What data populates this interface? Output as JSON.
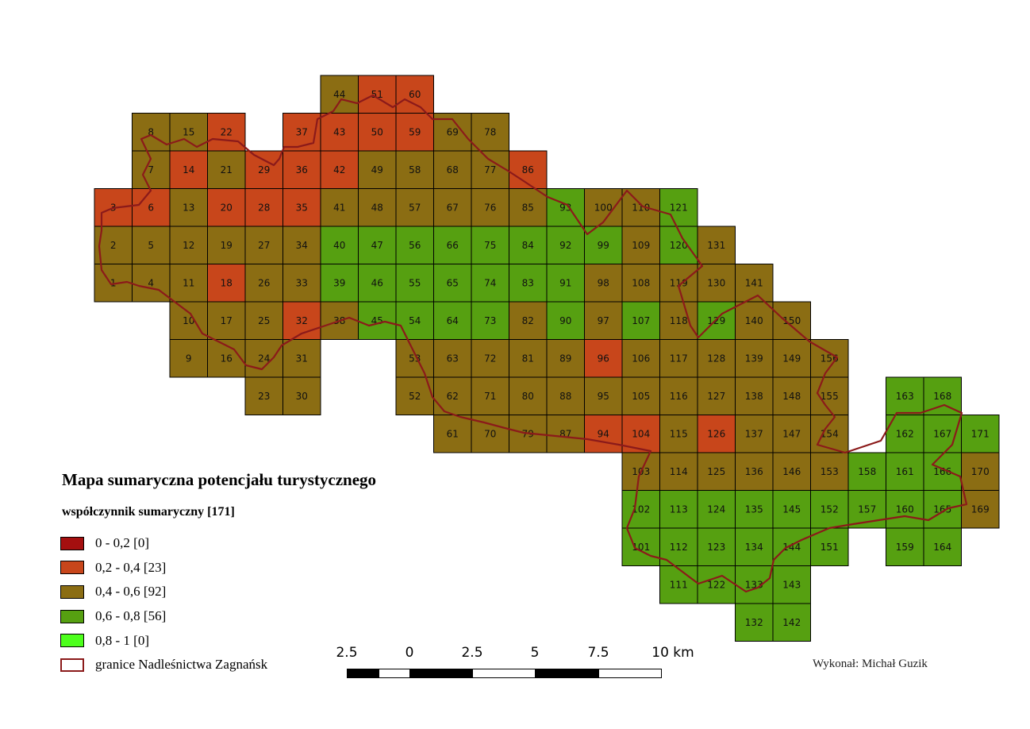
{
  "legend": {
    "title": "Mapa sumaryczna potencjału turystycznego",
    "subtitle": "współczynnik sumaryczny [171]",
    "classes": [
      {
        "label": "0 - 0,2 [0]",
        "color": "#a50f0f"
      },
      {
        "label": "0,2 - 0,4 [23]",
        "color": "#c8461b"
      },
      {
        "label": "0,4 - 0,6 [92]",
        "color": "#8b6d13"
      },
      {
        "label": "0,6 - 0,8 [56]",
        "color": "#56a011"
      },
      {
        "label": "0,8 - 1 [0]",
        "color": "#4dff1c"
      }
    ],
    "boundary": {
      "label": "granice Nadleśnictwa Zagnańsk",
      "color": "#8b1a1a"
    }
  },
  "scalebar": {
    "labels": [
      "2.5",
      "0",
      "2.5",
      "5",
      "7.5",
      "10 km"
    ]
  },
  "credit": "Wykonał: Michał Guzik",
  "map_data": {
    "classes_key": [
      "c0",
      "c1",
      "c2",
      "c3",
      "c4"
    ],
    "cells": [
      {
        "id": "1",
        "cls": 2
      },
      {
        "id": "2",
        "cls": 2
      },
      {
        "id": "3",
        "cls": 1
      },
      {
        "id": "4",
        "cls": 2
      },
      {
        "id": "5",
        "cls": 2
      },
      {
        "id": "6",
        "cls": 1
      },
      {
        "id": "7",
        "cls": 2
      },
      {
        "id": "8",
        "cls": 2
      },
      {
        "id": "9",
        "cls": 2
      },
      {
        "id": "10",
        "cls": 2
      },
      {
        "id": "11",
        "cls": 2
      },
      {
        "id": "12",
        "cls": 2
      },
      {
        "id": "13",
        "cls": 2
      },
      {
        "id": "14",
        "cls": 1
      },
      {
        "id": "15",
        "cls": 2
      },
      {
        "id": "16",
        "cls": 2
      },
      {
        "id": "17",
        "cls": 2
      },
      {
        "id": "18",
        "cls": 1
      },
      {
        "id": "19",
        "cls": 2
      },
      {
        "id": "20",
        "cls": 1
      },
      {
        "id": "21",
        "cls": 2
      },
      {
        "id": "22",
        "cls": 1
      },
      {
        "id": "23",
        "cls": 2
      },
      {
        "id": "24",
        "cls": 2
      },
      {
        "id": "25",
        "cls": 2
      },
      {
        "id": "26",
        "cls": 2
      },
      {
        "id": "27",
        "cls": 2
      },
      {
        "id": "28",
        "cls": 1
      },
      {
        "id": "29",
        "cls": 1
      },
      {
        "id": "30",
        "cls": 2
      },
      {
        "id": "31",
        "cls": 2
      },
      {
        "id": "32",
        "cls": 1
      },
      {
        "id": "33",
        "cls": 2
      },
      {
        "id": "34",
        "cls": 2
      },
      {
        "id": "35",
        "cls": 1
      },
      {
        "id": "36",
        "cls": 1
      },
      {
        "id": "37",
        "cls": 1
      },
      {
        "id": "38",
        "cls": 2
      },
      {
        "id": "39",
        "cls": 3
      },
      {
        "id": "40",
        "cls": 3
      },
      {
        "id": "41",
        "cls": 2
      },
      {
        "id": "42",
        "cls": 1
      },
      {
        "id": "43",
        "cls": 1
      },
      {
        "id": "44",
        "cls": 2
      },
      {
        "id": "45",
        "cls": 3
      },
      {
        "id": "46",
        "cls": 3
      },
      {
        "id": "47",
        "cls": 3
      },
      {
        "id": "48",
        "cls": 2
      },
      {
        "id": "49",
        "cls": 2
      },
      {
        "id": "50",
        "cls": 1
      },
      {
        "id": "51",
        "cls": 1
      },
      {
        "id": "52",
        "cls": 2
      },
      {
        "id": "53",
        "cls": 2
      },
      {
        "id": "54",
        "cls": 3
      },
      {
        "id": "55",
        "cls": 3
      },
      {
        "id": "56",
        "cls": 3
      },
      {
        "id": "57",
        "cls": 2
      },
      {
        "id": "58",
        "cls": 2
      },
      {
        "id": "59",
        "cls": 1
      },
      {
        "id": "60",
        "cls": 1
      },
      {
        "id": "61",
        "cls": 2
      },
      {
        "id": "62",
        "cls": 2
      },
      {
        "id": "63",
        "cls": 2
      },
      {
        "id": "64",
        "cls": 3
      },
      {
        "id": "65",
        "cls": 3
      },
      {
        "id": "66",
        "cls": 3
      },
      {
        "id": "67",
        "cls": 2
      },
      {
        "id": "68",
        "cls": 2
      },
      {
        "id": "69",
        "cls": 2
      },
      {
        "id": "70",
        "cls": 2
      },
      {
        "id": "71",
        "cls": 2
      },
      {
        "id": "72",
        "cls": 2
      },
      {
        "id": "73",
        "cls": 3
      },
      {
        "id": "74",
        "cls": 3
      },
      {
        "id": "75",
        "cls": 3
      },
      {
        "id": "76",
        "cls": 2
      },
      {
        "id": "77",
        "cls": 2
      },
      {
        "id": "78",
        "cls": 2
      },
      {
        "id": "79",
        "cls": 2
      },
      {
        "id": "80",
        "cls": 2
      },
      {
        "id": "81",
        "cls": 2
      },
      {
        "id": "82",
        "cls": 2
      },
      {
        "id": "83",
        "cls": 3
      },
      {
        "id": "84",
        "cls": 3
      },
      {
        "id": "85",
        "cls": 2
      },
      {
        "id": "86",
        "cls": 1
      },
      {
        "id": "87",
        "cls": 2
      },
      {
        "id": "88",
        "cls": 2
      },
      {
        "id": "89",
        "cls": 2
      },
      {
        "id": "90",
        "cls": 3
      },
      {
        "id": "91",
        "cls": 3
      },
      {
        "id": "92",
        "cls": 3
      },
      {
        "id": "93",
        "cls": 3
      },
      {
        "id": "94",
        "cls": 1
      },
      {
        "id": "95",
        "cls": 2
      },
      {
        "id": "96",
        "cls": 1
      },
      {
        "id": "97",
        "cls": 2
      },
      {
        "id": "98",
        "cls": 2
      },
      {
        "id": "99",
        "cls": 3
      },
      {
        "id": "100",
        "cls": 2
      },
      {
        "id": "101",
        "cls": 3
      },
      {
        "id": "102",
        "cls": 3
      },
      {
        "id": "103",
        "cls": 2
      },
      {
        "id": "104",
        "cls": 1
      },
      {
        "id": "105",
        "cls": 2
      },
      {
        "id": "106",
        "cls": 2
      },
      {
        "id": "107",
        "cls": 3
      },
      {
        "id": "108",
        "cls": 2
      },
      {
        "id": "109",
        "cls": 2
      },
      {
        "id": "110",
        "cls": 2
      },
      {
        "id": "111",
        "cls": 3
      },
      {
        "id": "112",
        "cls": 3
      },
      {
        "id": "113",
        "cls": 3
      },
      {
        "id": "114",
        "cls": 2
      },
      {
        "id": "115",
        "cls": 2
      },
      {
        "id": "116",
        "cls": 2
      },
      {
        "id": "117",
        "cls": 2
      },
      {
        "id": "118",
        "cls": 2
      },
      {
        "id": "119",
        "cls": 2
      },
      {
        "id": "120",
        "cls": 3
      },
      {
        "id": "121",
        "cls": 3
      },
      {
        "id": "122",
        "cls": 3
      },
      {
        "id": "123",
        "cls": 3
      },
      {
        "id": "124",
        "cls": 3
      },
      {
        "id": "125",
        "cls": 2
      },
      {
        "id": "126",
        "cls": 1
      },
      {
        "id": "127",
        "cls": 2
      },
      {
        "id": "128",
        "cls": 2
      },
      {
        "id": "129",
        "cls": 3
      },
      {
        "id": "130",
        "cls": 2
      },
      {
        "id": "131",
        "cls": 2
      },
      {
        "id": "132",
        "cls": 3
      },
      {
        "id": "133",
        "cls": 3
      },
      {
        "id": "134",
        "cls": 3
      },
      {
        "id": "135",
        "cls": 3
      },
      {
        "id": "136",
        "cls": 2
      },
      {
        "id": "137",
        "cls": 2
      },
      {
        "id": "138",
        "cls": 2
      },
      {
        "id": "139",
        "cls": 2
      },
      {
        "id": "140",
        "cls": 2
      },
      {
        "id": "141",
        "cls": 2
      },
      {
        "id": "142",
        "cls": 3
      },
      {
        "id": "143",
        "cls": 3
      },
      {
        "id": "144",
        "cls": 3
      },
      {
        "id": "145",
        "cls": 3
      },
      {
        "id": "146",
        "cls": 2
      },
      {
        "id": "147",
        "cls": 2
      },
      {
        "id": "148",
        "cls": 2
      },
      {
        "id": "149",
        "cls": 2
      },
      {
        "id": "150",
        "cls": 2
      },
      {
        "id": "151",
        "cls": 3
      },
      {
        "id": "152",
        "cls": 3
      },
      {
        "id": "153",
        "cls": 2
      },
      {
        "id": "154",
        "cls": 2
      },
      {
        "id": "155",
        "cls": 2
      },
      {
        "id": "156",
        "cls": 2
      },
      {
        "id": "157",
        "cls": 3
      },
      {
        "id": "158",
        "cls": 3
      },
      {
        "id": "159",
        "cls": 3
      },
      {
        "id": "160",
        "cls": 3
      },
      {
        "id": "161",
        "cls": 3
      },
      {
        "id": "162",
        "cls": 3
      },
      {
        "id": "163",
        "cls": 3
      },
      {
        "id": "164",
        "cls": 3
      },
      {
        "id": "165",
        "cls": 3
      },
      {
        "id": "166",
        "cls": 3
      },
      {
        "id": "167",
        "cls": 3
      },
      {
        "id": "168",
        "cls": 3
      },
      {
        "id": "169",
        "cls": 2
      },
      {
        "id": "170",
        "cls": 2
      },
      {
        "id": "171",
        "cls": 3
      }
    ]
  }
}
